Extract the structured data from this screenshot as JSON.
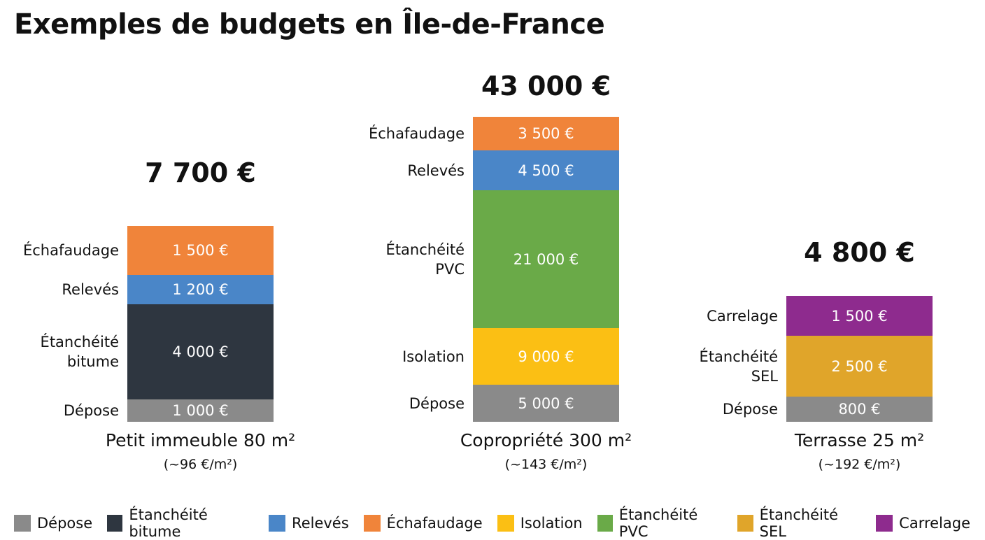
{
  "title": "Exemples de budgets en Île-de-France",
  "chart_data": {
    "type": "bar",
    "stacked": true,
    "title": "Exemples de budgets en Île-de-France",
    "legend_position": "bottom",
    "legend": [
      {
        "name": "Dépose",
        "color": "#8a8a8a"
      },
      {
        "name": "Étanchéité bitume",
        "color": "#2e3640"
      },
      {
        "name": "Relevés",
        "color": "#4a86c8"
      },
      {
        "name": "Échafaudage",
        "color": "#f0843a"
      },
      {
        "name": "Isolation",
        "color": "#fbbf14"
      },
      {
        "name": "Étanchéité PVC",
        "color": "#6aaa48"
      },
      {
        "name": "Étanchéité SEL",
        "color": "#e0a52a"
      },
      {
        "name": "Carrelage",
        "color": "#8e2b8e"
      }
    ],
    "bars": [
      {
        "category": "Petit immeuble 80 m²",
        "per_m2": "(~96 €/m²)",
        "total": "7 700 €",
        "segments": [
          {
            "name": "Dépose",
            "value": 1000,
            "label": "1 000 €",
            "color": "#8a8a8a"
          },
          {
            "name": "Étanchéité bitume",
            "value": 4000,
            "label": "4 000 €",
            "color": "#2e3640"
          },
          {
            "name": "Relevés",
            "value": 1200,
            "label": "1 200 €",
            "color": "#4a86c8"
          },
          {
            "name": "Échafaudage",
            "value": 1500,
            "label": "1 500 €",
            "color": "#f0843a"
          }
        ]
      },
      {
        "category": "Copropriété 300 m²",
        "per_m2": "(~143 €/m²)",
        "total": "43 000 €",
        "segments": [
          {
            "name": "Dépose",
            "value": 5000,
            "label": "5 000 €",
            "color": "#8a8a8a"
          },
          {
            "name": "Isolation",
            "value": 9000,
            "label": "9 000 €",
            "color": "#fbbf14"
          },
          {
            "name": "Étanchéité PVC",
            "value": 21000,
            "label": "21 000 €",
            "color": "#6aaa48"
          },
          {
            "name": "Relevés",
            "value": 4500,
            "label": "4 500 €",
            "color": "#4a86c8"
          },
          {
            "name": "Échafaudage",
            "value": 3500,
            "label": "3 500 €",
            "color": "#f0843a"
          }
        ]
      },
      {
        "category": "Terrasse 25 m²",
        "per_m2": "(~192 €/m²)",
        "total": "4 800 €",
        "segments": [
          {
            "name": "Dépose",
            "value": 800,
            "label": "800 €",
            "color": "#8a8a8a"
          },
          {
            "name": "Étanchéité SEL",
            "value": 2500,
            "label": "2 500 €",
            "color": "#e0a52a"
          },
          {
            "name": "Carrelage",
            "value": 1500,
            "label": "1 500 €",
            "color": "#8e2b8e"
          }
        ]
      }
    ]
  }
}
